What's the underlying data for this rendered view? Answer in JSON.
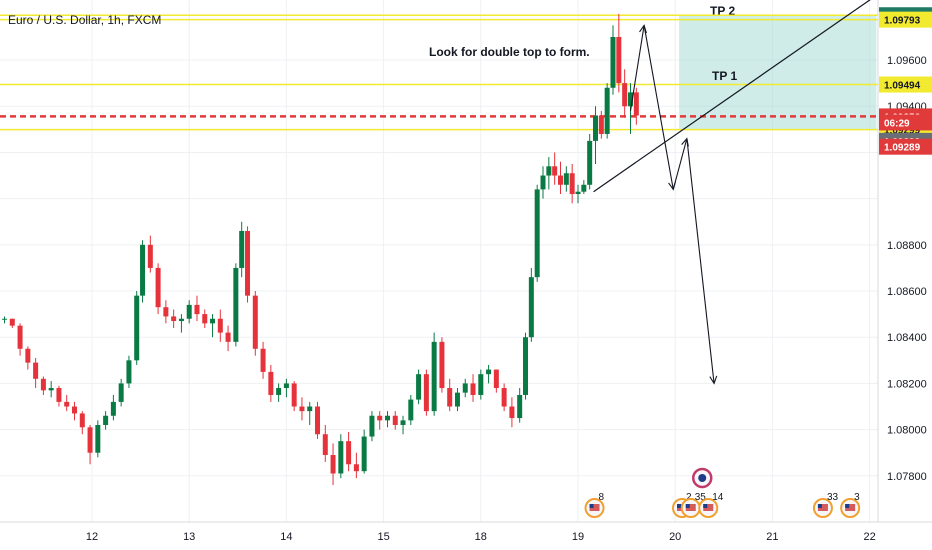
{
  "chart_data": {
    "type": "candlestick",
    "title": "Euro / U.S. Dollar, 1h, FXCM",
    "annotation": "Look for double top to form.",
    "ylim": [
      1.076,
      1.0986
    ],
    "y_ticks": [
      "1.07800",
      "1.08000",
      "1.08200",
      "1.08400",
      "1.08600",
      "1.08800",
      "1.09400",
      "1.09600"
    ],
    "x_ticks": [
      {
        "label": "12",
        "x": 12
      },
      {
        "label": "13",
        "x": 13
      },
      {
        "label": "14",
        "x": 14
      },
      {
        "label": "15",
        "x": 15
      },
      {
        "label": "18",
        "x": 16
      },
      {
        "label": "19",
        "x": 17
      },
      {
        "label": "20",
        "x": 18
      },
      {
        "label": "21",
        "x": 19
      },
      {
        "label": "22",
        "x": 20
      }
    ],
    "xlim": [
      11.1,
      20.07
    ],
    "candles": [
      [
        11.1,
        1.0848,
        1.0849,
        1.0846,
        1.0848
      ],
      [
        11.18,
        1.0848,
        1.0848,
        1.0844,
        1.0845
      ],
      [
        11.26,
        1.0845,
        1.0846,
        1.0832,
        1.0835
      ],
      [
        11.34,
        1.0835,
        1.0836,
        1.0826,
        1.0829
      ],
      [
        11.42,
        1.0829,
        1.0831,
        1.0818,
        1.0822
      ],
      [
        11.5,
        1.0822,
        1.0823,
        1.0815,
        1.0817
      ],
      [
        11.58,
        1.0817,
        1.0821,
        1.0814,
        1.0818
      ],
      [
        11.66,
        1.0818,
        1.0819,
        1.081,
        1.0812
      ],
      [
        11.74,
        1.0812,
        1.0815,
        1.0808,
        1.081
      ],
      [
        11.82,
        1.081,
        1.0812,
        1.0804,
        1.0807
      ],
      [
        11.9,
        1.0807,
        1.0808,
        1.0798,
        1.0801
      ],
      [
        11.98,
        1.0801,
        1.0802,
        1.0785,
        1.079
      ],
      [
        12.06,
        1.079,
        1.0804,
        1.0788,
        1.0802
      ],
      [
        12.14,
        1.0802,
        1.0808,
        1.08,
        1.0806
      ],
      [
        12.22,
        1.0806,
        1.0815,
        1.0804,
        1.0812
      ],
      [
        12.3,
        1.0812,
        1.0822,
        1.081,
        1.082
      ],
      [
        12.38,
        1.082,
        1.0832,
        1.0818,
        1.083
      ],
      [
        12.46,
        1.083,
        1.086,
        1.0828,
        1.0858
      ],
      [
        12.52,
        1.0858,
        1.0882,
        1.0855,
        1.088
      ],
      [
        12.6,
        1.088,
        1.0884,
        1.0868,
        1.087
      ],
      [
        12.68,
        1.087,
        1.0872,
        1.085,
        1.0853
      ],
      [
        12.76,
        1.0853,
        1.0856,
        1.0846,
        1.0849
      ],
      [
        12.84,
        1.0849,
        1.0852,
        1.0844,
        1.0847
      ],
      [
        12.92,
        1.0847,
        1.085,
        1.0842,
        1.0848
      ],
      [
        13.0,
        1.0848,
        1.0856,
        1.0846,
        1.0854
      ],
      [
        13.08,
        1.0854,
        1.0858,
        1.0847,
        1.085
      ],
      [
        13.16,
        1.085,
        1.0852,
        1.0844,
        1.0846
      ],
      [
        13.24,
        1.0846,
        1.085,
        1.084,
        1.0848
      ],
      [
        13.32,
        1.0848,
        1.0852,
        1.0838,
        1.0842
      ],
      [
        13.4,
        1.0842,
        1.0845,
        1.0834,
        1.0838
      ],
      [
        13.48,
        1.0838,
        1.0872,
        1.0836,
        1.087
      ],
      [
        13.54,
        1.087,
        1.089,
        1.0866,
        1.0886
      ],
      [
        13.6,
        1.0886,
        1.0888,
        1.0855,
        1.0858
      ],
      [
        13.68,
        1.0858,
        1.086,
        1.0832,
        1.0835
      ],
      [
        13.76,
        1.0835,
        1.0838,
        1.0822,
        1.0825
      ],
      [
        13.84,
        1.0825,
        1.0828,
        1.0812,
        1.0815
      ],
      [
        13.92,
        1.0815,
        1.082,
        1.0812,
        1.0818
      ],
      [
        14.0,
        1.0818,
        1.0822,
        1.0814,
        1.082
      ],
      [
        14.08,
        1.082,
        1.0821,
        1.0808,
        1.081
      ],
      [
        14.16,
        1.081,
        1.0814,
        1.0804,
        1.0808
      ],
      [
        14.24,
        1.0808,
        1.0812,
        1.0802,
        1.081
      ],
      [
        14.32,
        1.081,
        1.0812,
        1.0796,
        1.0798
      ],
      [
        14.4,
        1.0798,
        1.0802,
        1.0786,
        1.0789
      ],
      [
        14.48,
        1.0789,
        1.0794,
        1.0776,
        1.0781
      ],
      [
        14.56,
        1.0781,
        1.0798,
        1.0779,
        1.0795
      ],
      [
        14.64,
        1.0795,
        1.0799,
        1.0782,
        1.0785
      ],
      [
        14.72,
        1.0785,
        1.079,
        1.0779,
        1.0782
      ],
      [
        14.8,
        1.0782,
        1.08,
        1.0781,
        1.0797
      ],
      [
        14.88,
        1.0797,
        1.0808,
        1.0795,
        1.0806
      ],
      [
        14.96,
        1.0806,
        1.0808,
        1.08,
        1.0804
      ],
      [
        15.04,
        1.0804,
        1.0808,
        1.0801,
        1.0806
      ],
      [
        15.12,
        1.0806,
        1.0808,
        1.08,
        1.0802
      ],
      [
        15.2,
        1.0802,
        1.0806,
        1.0798,
        1.0804
      ],
      [
        15.28,
        1.0804,
        1.0815,
        1.0802,
        1.0813
      ],
      [
        15.36,
        1.0813,
        1.0826,
        1.0811,
        1.0824
      ],
      [
        15.44,
        1.0824,
        1.0826,
        1.0806,
        1.0808
      ],
      [
        15.52,
        1.0808,
        1.0842,
        1.0806,
        1.0838
      ],
      [
        15.6,
        1.0838,
        1.084,
        1.0816,
        1.0818
      ],
      [
        15.68,
        1.0818,
        1.0822,
        1.0808,
        1.081
      ],
      [
        15.76,
        1.081,
        1.0818,
        1.0808,
        1.0816
      ],
      [
        15.84,
        1.0816,
        1.0822,
        1.0814,
        1.082
      ],
      [
        15.92,
        1.082,
        1.0824,
        1.0812,
        1.0815
      ],
      [
        16.0,
        1.0815,
        1.0826,
        1.0813,
        1.0824
      ],
      [
        16.08,
        1.0824,
        1.0828,
        1.082,
        1.0826
      ],
      [
        16.16,
        1.0826,
        1.0826,
        1.0816,
        1.0818
      ],
      [
        16.24,
        1.0818,
        1.082,
        1.0808,
        1.081
      ],
      [
        16.32,
        1.081,
        1.0814,
        1.0801,
        1.0805
      ],
      [
        16.4,
        1.0805,
        1.0818,
        1.0803,
        1.0815
      ],
      [
        16.46,
        1.0815,
        1.0842,
        1.0813,
        1.084
      ],
      [
        16.52,
        1.084,
        1.087,
        1.0838,
        1.0866
      ],
      [
        16.58,
        1.0866,
        1.0906,
        1.0864,
        1.0904
      ],
      [
        16.64,
        1.0904,
        1.0914,
        1.09,
        1.091
      ],
      [
        16.7,
        1.091,
        1.0918,
        1.0904,
        1.0914
      ],
      [
        16.76,
        1.0914,
        1.092,
        1.0906,
        1.091
      ],
      [
        16.82,
        1.091,
        1.0916,
        1.0902,
        1.0906
      ],
      [
        16.88,
        1.0906,
        1.0914,
        1.0903,
        1.0911
      ],
      [
        16.94,
        1.0911,
        1.0915,
        1.0898,
        1.0902
      ],
      [
        17.0,
        1.0902,
        1.0906,
        1.0898,
        1.0903
      ],
      [
        17.06,
        1.0903,
        1.0908,
        1.0902,
        1.0906
      ],
      [
        17.12,
        1.0906,
        1.0928,
        1.0904,
        1.0925
      ],
      [
        17.18,
        1.0925,
        1.094,
        1.0915,
        1.0936
      ],
      [
        17.24,
        1.0936,
        1.0938,
        1.0926,
        1.0928
      ],
      [
        17.3,
        1.0928,
        1.095,
        1.0926,
        1.0948
      ],
      [
        17.36,
        1.0948,
        1.0975,
        1.0945,
        1.097
      ],
      [
        17.42,
        1.097,
        1.098,
        1.0946,
        1.095
      ],
      [
        17.48,
        1.095,
        1.0956,
        1.0935,
        1.094
      ],
      [
        17.54,
        1.094,
        1.095,
        1.0928,
        1.0946
      ],
      [
        17.6,
        1.0946,
        1.0948,
        1.0932,
        1.0936
      ]
    ],
    "levels": [
      {
        "price": 1.09794,
        "color": "#f2ea2e",
        "label": "1.09794",
        "label_bg": "#1f7a68",
        "label_fg": "#ffffff"
      },
      {
        "price": 1.09775,
        "color": "#f2ea2e",
        "label": "1.09793",
        "label_bg": "#f2ea2e",
        "label_fg": "#131722"
      },
      {
        "price": 1.09494,
        "color": "#f2ea2e",
        "label": "1.09494",
        "label_bg": "#f2ea2e",
        "label_fg": "#131722"
      },
      {
        "price": 1.09356,
        "color": "#e03a3a",
        "dashed": true,
        "label": "1.09356",
        "label_bg": "#e03a3a",
        "label_fg": "#ffffff"
      },
      {
        "price": 1.09299,
        "color": "#f2ea2e",
        "label": "1.09299",
        "label_bg": "#f2ea2e",
        "label_fg": "#131722"
      }
    ],
    "extra_tags": [
      {
        "text": "06:29",
        "price": 1.0933,
        "bg": "#e03a3a",
        "fg": "#ffffff"
      },
      {
        "text": "1.09299",
        "price": 1.0925,
        "bg": "#6b6e75",
        "fg": "#ffffff"
      },
      {
        "text": "1.09289",
        "price": 1.09225,
        "bg": "#e03a3a",
        "fg": "#ffffff"
      }
    ],
    "target_zone": {
      "x0": 18.04,
      "x1": 20.07,
      "p0": 1.09794,
      "p1": 1.09299,
      "label_tp1": "TP 1",
      "label_tp2": "TP 2"
    },
    "trendline": [
      [
        17.16,
        1.0903
      ],
      [
        20.07,
        1.0988
      ]
    ],
    "path": [
      [
        17.54,
        1.0938
      ],
      [
        17.68,
        1.0975
      ],
      [
        17.98,
        1.0904
      ],
      [
        18.12,
        1.0926
      ],
      [
        18.4,
        1.082
      ]
    ],
    "events": [
      {
        "x": 17.17,
        "count": "8"
      },
      {
        "x": 18.07,
        "count": "2"
      },
      {
        "x": 18.16,
        "count": "35"
      },
      {
        "x": 18.34,
        "count": "14"
      },
      {
        "x": 19.52,
        "count": "33"
      },
      {
        "x": 19.8,
        "count": "3"
      }
    ]
  }
}
